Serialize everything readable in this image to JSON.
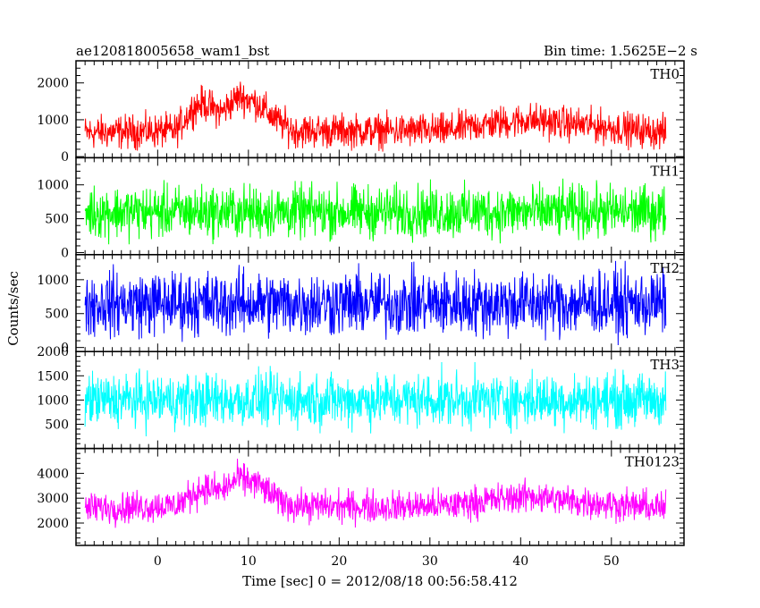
{
  "header": {
    "left_title": "ae120818005658_wam1_bst",
    "right_title": "Bin time: 1.5625E−2 s"
  },
  "chart_data": {
    "type": "line",
    "title": "ae120818005658_wam1_bst",
    "subtitle": "Bin time: 1.5625E−2 s",
    "xlabel": "Time [sec] 0 = 2012/08/18 00:56:58.412",
    "ylabel": "Counts/sec",
    "xlim": [
      -9,
      58
    ],
    "x_ticks": [
      0,
      10,
      20,
      30,
      40,
      50
    ],
    "x_range_data": [
      -8,
      56
    ],
    "grid": false,
    "legend": "panel labels top-right",
    "panels": [
      {
        "name": "TH0",
        "color": "#ff0000",
        "ylim": [
          -30,
          2600
        ],
        "y_ticks": [
          0,
          1000,
          2000
        ],
        "profile": [
          [
            -8,
            650
          ],
          [
            2,
            700
          ],
          [
            4,
            1350
          ],
          [
            5,
            1450
          ],
          [
            7,
            1200
          ],
          [
            9,
            1650
          ],
          [
            11,
            1450
          ],
          [
            13,
            1000
          ],
          [
            15,
            700
          ],
          [
            25,
            700
          ],
          [
            32,
            700
          ],
          [
            35,
            850
          ],
          [
            41,
            1000
          ],
          [
            45,
            900
          ],
          [
            56,
            650
          ]
        ],
        "noise_amplitude": 500
      },
      {
        "name": "TH1",
        "color": "#00ff00",
        "ylim": [
          -30,
          1400
        ],
        "y_ticks": [
          0,
          500,
          1000
        ],
        "profile": [
          [
            -8,
            600
          ],
          [
            56,
            600
          ]
        ],
        "noise_amplitude": 420
      },
      {
        "name": "TH2",
        "color": "#0000ff",
        "ylim": [
          -60,
          1370
        ],
        "y_ticks": [
          0,
          500,
          1000
        ],
        "profile": [
          [
            -8,
            650
          ],
          [
            56,
            650
          ]
        ],
        "noise_amplitude": 520
      },
      {
        "name": "TH3",
        "color": "#00ffff",
        "ylim": [
          0,
          2000
        ],
        "y_ticks": [
          500,
          1000,
          1500,
          2000
        ],
        "profile": [
          [
            -8,
            1000
          ],
          [
            56,
            1000
          ]
        ],
        "noise_amplitude": 600
      },
      {
        "name": "TH0123",
        "color": "#ff00ff",
        "ylim": [
          1100,
          5000
        ],
        "y_ticks": [
          2000,
          3000,
          4000
        ],
        "profile": [
          [
            -8,
            2600
          ],
          [
            2,
            2700
          ],
          [
            4,
            3200
          ],
          [
            5,
            3400
          ],
          [
            7,
            3300
          ],
          [
            9,
            3800
          ],
          [
            11,
            3600
          ],
          [
            13,
            3000
          ],
          [
            15,
            2700
          ],
          [
            25,
            2650
          ],
          [
            32,
            2700
          ],
          [
            35,
            2850
          ],
          [
            41,
            3100
          ],
          [
            45,
            2900
          ],
          [
            56,
            2600
          ]
        ],
        "noise_amplitude": 700
      }
    ]
  }
}
